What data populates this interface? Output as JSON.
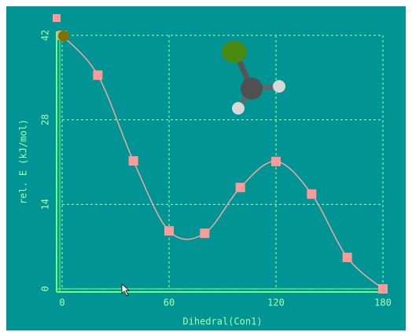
{
  "chart_data": {
    "type": "line",
    "x_label": "Dihedral(Con1)",
    "y_label": "rel. E (kJ/mol)",
    "x": [
      0,
      20,
      40,
      60,
      80,
      100,
      120,
      140,
      160,
      180
    ],
    "values": [
      42,
      35.4,
      21.2,
      9.6,
      9.2,
      16.8,
      21.1,
      15.7,
      5.2,
      0
    ],
    "color": "#ff9a9a",
    "line_color": "#f0a8a0",
    "xlim": [
      0,
      180
    ],
    "xticks": [
      0,
      60,
      120,
      180
    ],
    "ylim": [
      0,
      42
    ],
    "yticks": [
      0,
      14,
      28,
      42
    ],
    "grid": true
  }
}
